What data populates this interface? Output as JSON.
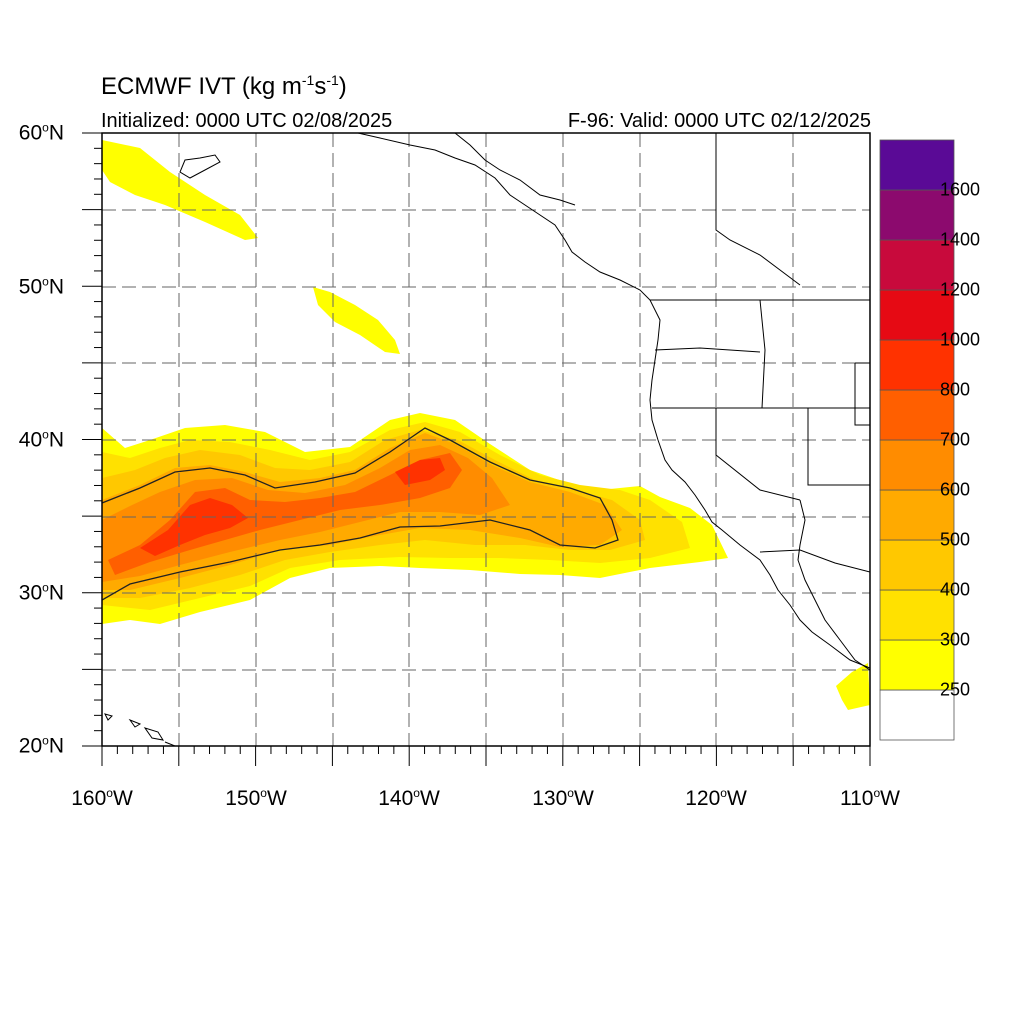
{
  "map": {
    "title_prefix": "ECMWF IVT (kg m",
    "title_exp1": "-1",
    "title_mid": "s",
    "title_exp2": "-1",
    "title_suffix": ")",
    "initialized": "Initialized: 0000 UTC 02/08/2025",
    "valid": "F-96: Valid: 0000 UTC 02/12/2025",
    "lat_labels": [
      "60",
      "50",
      "40",
      "30",
      "20"
    ],
    "lat_suffix": "N",
    "lon_labels": [
      "160",
      "150",
      "140",
      "130",
      "120",
      "110"
    ],
    "lon_suffix": "W",
    "degree_mark": "o",
    "extent": {
      "lon_min": -160,
      "lon_max": -110,
      "lat_min": 20,
      "lat_max": 60
    }
  },
  "colorbar": {
    "labels": [
      "250",
      "300",
      "400",
      "500",
      "600",
      "700",
      "800",
      "1000",
      "1200",
      "1400",
      "1600"
    ],
    "colors": [
      "#ffffff",
      "#ffff00",
      "#ffe100",
      "#ffc800",
      "#ffaa00",
      "#ff8c00",
      "#ff5f00",
      "#ff3200",
      "#e60a14",
      "#c80a3c",
      "#8c0a6e",
      "#5a0a96"
    ]
  },
  "ivt_bands": [
    {
      "color": "#ffff00",
      "label": "250"
    },
    {
      "color": "#ffe100",
      "label": "300"
    },
    {
      "color": "#ffc800",
      "label": "400"
    },
    {
      "color": "#ffaa00",
      "label": "500"
    },
    {
      "color": "#ff8c00",
      "label": "600"
    },
    {
      "color": "#ff5f00",
      "label": "700"
    }
  ]
}
